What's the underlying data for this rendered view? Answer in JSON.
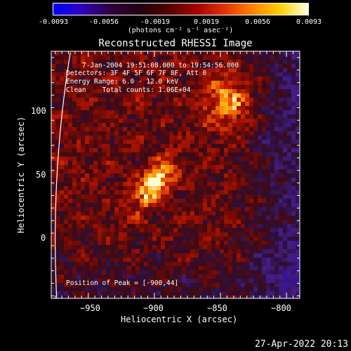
{
  "colorbar": {
    "ticks": [
      "-0.0093",
      "-0.0056",
      "-0.0019",
      "0.0019",
      "0.0056",
      "0.0093"
    ],
    "units": "(photons cm⁻² s⁻¹ asec⁻²)",
    "colors": [
      "#0000ff",
      "#3000c0",
      "#300040",
      "#200010",
      "#500000",
      "#a00000",
      "#e03000",
      "#ff8000",
      "#ffd000",
      "#ffffe0"
    ]
  },
  "chart_data": {
    "type": "heatmap",
    "title": "Reconstructed RHESSI Image",
    "xlabel": "Heliocentric X (arcsec)",
    "ylabel": "Heliocentric Y (arcsec)",
    "xlim": [
      -978,
      -790
    ],
    "ylim": [
      -47,
      150
    ],
    "x_ticks": [
      -950,
      -900,
      -850,
      -800
    ],
    "y_ticks": [
      0,
      50,
      100
    ],
    "x_tick_labels": [
      "−950",
      "−900",
      "−850",
      "−800"
    ],
    "y_tick_labels": [
      "0",
      "50",
      "100"
    ],
    "peak": [
      -900,
      44
    ],
    "clim": [
      -0.0093,
      0.0093
    ]
  },
  "info": {
    "time": "7-Jan-2004 19:51:08.000 to 19:54:56.000",
    "detectors": "Detectors: 3F 4F 5F 6F 7F 8F, Att 0",
    "energy": "Energy Range: 6.0 - 12.0 keV",
    "clean": "Clean    Total counts: 1.06E+04",
    "peak": "Position of Peak = [-900,44]"
  },
  "timestamp": "27-Apr-2022 20:13"
}
